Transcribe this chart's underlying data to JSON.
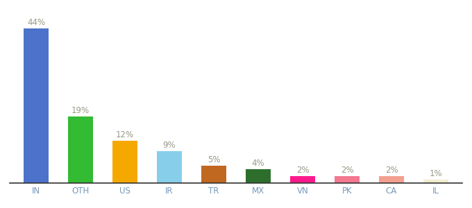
{
  "categories": [
    "IN",
    "OTH",
    "US",
    "IR",
    "TR",
    "MX",
    "VN",
    "PK",
    "CA",
    "IL"
  ],
  "values": [
    44,
    19,
    12,
    9,
    5,
    4,
    2,
    2,
    2,
    1
  ],
  "bar_colors": [
    "#4d72cb",
    "#33bb33",
    "#f5a800",
    "#87ceeb",
    "#c06820",
    "#2d6e2d",
    "#ff1a8c",
    "#f47890",
    "#f4a090",
    "#f0edd0"
  ],
  "labels": [
    "44%",
    "19%",
    "12%",
    "9%",
    "5%",
    "4%",
    "2%",
    "2%",
    "2%",
    "1%"
  ],
  "title": "",
  "ylim": [
    0,
    48
  ],
  "label_color": "#999988",
  "label_fontsize": 8.5,
  "tick_fontsize": 8.5,
  "tick_color": "#7799bb",
  "background_color": "#ffffff",
  "bar_width": 0.55
}
